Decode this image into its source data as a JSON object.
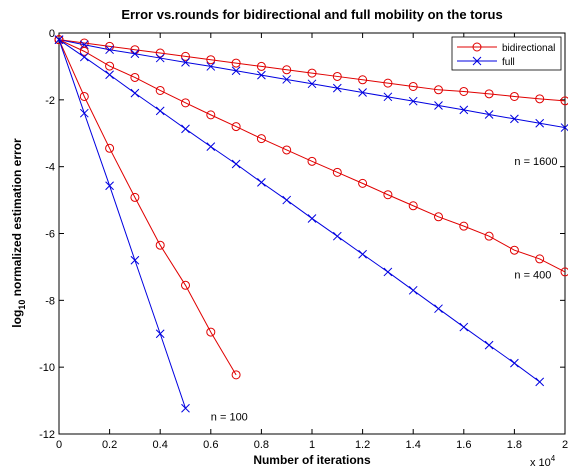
{
  "chart_data": {
    "type": "line",
    "title": "Error vs.rounds for bidirectional and full mobility on the torus",
    "xlabel": "Number of iterations",
    "ylabel_main": "log",
    "ylabel_sub": "10",
    "ylabel_rest": " normalized estimation error",
    "x_multiplier": "x 10",
    "x_multiplier_exp": "4",
    "xlim": [
      0,
      2
    ],
    "ylim": [
      -12,
      0
    ],
    "xticks": [
      "0",
      "0.2",
      "0.4",
      "0.6",
      "0.8",
      "1",
      "1.2",
      "1.4",
      "1.6",
      "1.8",
      "2"
    ],
    "yticks": [
      "0",
      "-2",
      "-4",
      "-6",
      "-8",
      "-10",
      "-12"
    ],
    "grid": false,
    "legend_position": "top-right",
    "legend": [
      {
        "label": "bidirectional",
        "color": "#e00000",
        "marker": "circle"
      },
      {
        "label": "full",
        "color": "#0000e0",
        "marker": "x"
      }
    ],
    "annotations": [
      {
        "text": "n = 1600",
        "x": 1.8,
        "y": -3.95
      },
      {
        "text": "n = 400",
        "x": 1.8,
        "y": -7.35
      },
      {
        "text": "n = 100",
        "x": 0.6,
        "y": -11.6
      }
    ],
    "series": [
      {
        "group": "bidirectional",
        "n": 1600,
        "color": "#e00000",
        "marker": "circle",
        "x": [
          0,
          0.1,
          0.2,
          0.3,
          0.4,
          0.5,
          0.6,
          0.7,
          0.8,
          0.9,
          1.0,
          1.1,
          1.2,
          1.3,
          1.4,
          1.5,
          1.6,
          1.7,
          1.8,
          1.9,
          2.0
        ],
        "y": [
          -0.2,
          -0.3,
          -0.4,
          -0.5,
          -0.6,
          -0.7,
          -0.8,
          -0.9,
          -1.0,
          -1.1,
          -1.2,
          -1.3,
          -1.4,
          -1.5,
          -1.6,
          -1.7,
          -1.75,
          -1.82,
          -1.9,
          -1.97,
          -2.03
        ]
      },
      {
        "group": "full",
        "n": 1600,
        "color": "#0000e0",
        "marker": "x",
        "x": [
          0,
          0.1,
          0.2,
          0.3,
          0.4,
          0.5,
          0.6,
          0.7,
          0.8,
          0.9,
          1.0,
          1.1,
          1.2,
          1.3,
          1.4,
          1.5,
          1.6,
          1.7,
          1.8,
          1.9,
          2.0
        ],
        "y": [
          -0.2,
          -0.35,
          -0.5,
          -0.62,
          -0.75,
          -0.88,
          -1.0,
          -1.13,
          -1.26,
          -1.39,
          -1.52,
          -1.65,
          -1.78,
          -1.91,
          -2.04,
          -2.17,
          -2.3,
          -2.44,
          -2.57,
          -2.7,
          -2.83
        ]
      },
      {
        "group": "bidirectional",
        "n": 400,
        "color": "#e00000",
        "marker": "circle",
        "x": [
          0,
          0.1,
          0.2,
          0.3,
          0.4,
          0.5,
          0.6,
          0.7,
          0.8,
          0.9,
          1.0,
          1.1,
          1.2,
          1.3,
          1.4,
          1.5,
          1.6,
          1.7,
          1.8,
          1.9,
          2.0
        ],
        "y": [
          -0.2,
          -0.55,
          -0.99,
          -1.33,
          -1.72,
          -2.09,
          -2.45,
          -2.8,
          -3.16,
          -3.5,
          -3.84,
          -4.17,
          -4.5,
          -4.84,
          -5.17,
          -5.5,
          -5.78,
          -6.08,
          -6.5,
          -6.76,
          -7.15
        ]
      },
      {
        "group": "full",
        "n": 400,
        "color": "#0000e0",
        "marker": "x",
        "x": [
          0,
          0.1,
          0.2,
          0.3,
          0.4,
          0.5,
          0.6,
          0.7,
          0.8,
          0.9,
          1.0,
          1.1,
          1.2,
          1.3,
          1.4,
          1.5,
          1.6,
          1.7,
          1.8,
          1.9
        ],
        "y": [
          -0.2,
          -0.72,
          -1.25,
          -1.8,
          -2.33,
          -2.87,
          -3.4,
          -3.92,
          -4.47,
          -5.0,
          -5.55,
          -6.08,
          -6.62,
          -7.15,
          -7.7,
          -8.25,
          -8.8,
          -9.34,
          -9.88,
          -10.44
        ]
      },
      {
        "group": "bidirectional",
        "n": 100,
        "color": "#e00000",
        "marker": "circle",
        "x": [
          0,
          0.1,
          0.2,
          0.3,
          0.4,
          0.5,
          0.6,
          0.7
        ],
        "y": [
          -0.2,
          -1.9,
          -3.45,
          -4.92,
          -6.35,
          -7.55,
          -8.95,
          -10.23
        ]
      },
      {
        "group": "full",
        "n": 100,
        "color": "#0000e0",
        "marker": "x",
        "x": [
          0,
          0.1,
          0.2,
          0.3,
          0.4,
          0.5
        ],
        "y": [
          -0.2,
          -2.4,
          -4.57,
          -6.8,
          -9.0,
          -11.23
        ]
      }
    ]
  }
}
